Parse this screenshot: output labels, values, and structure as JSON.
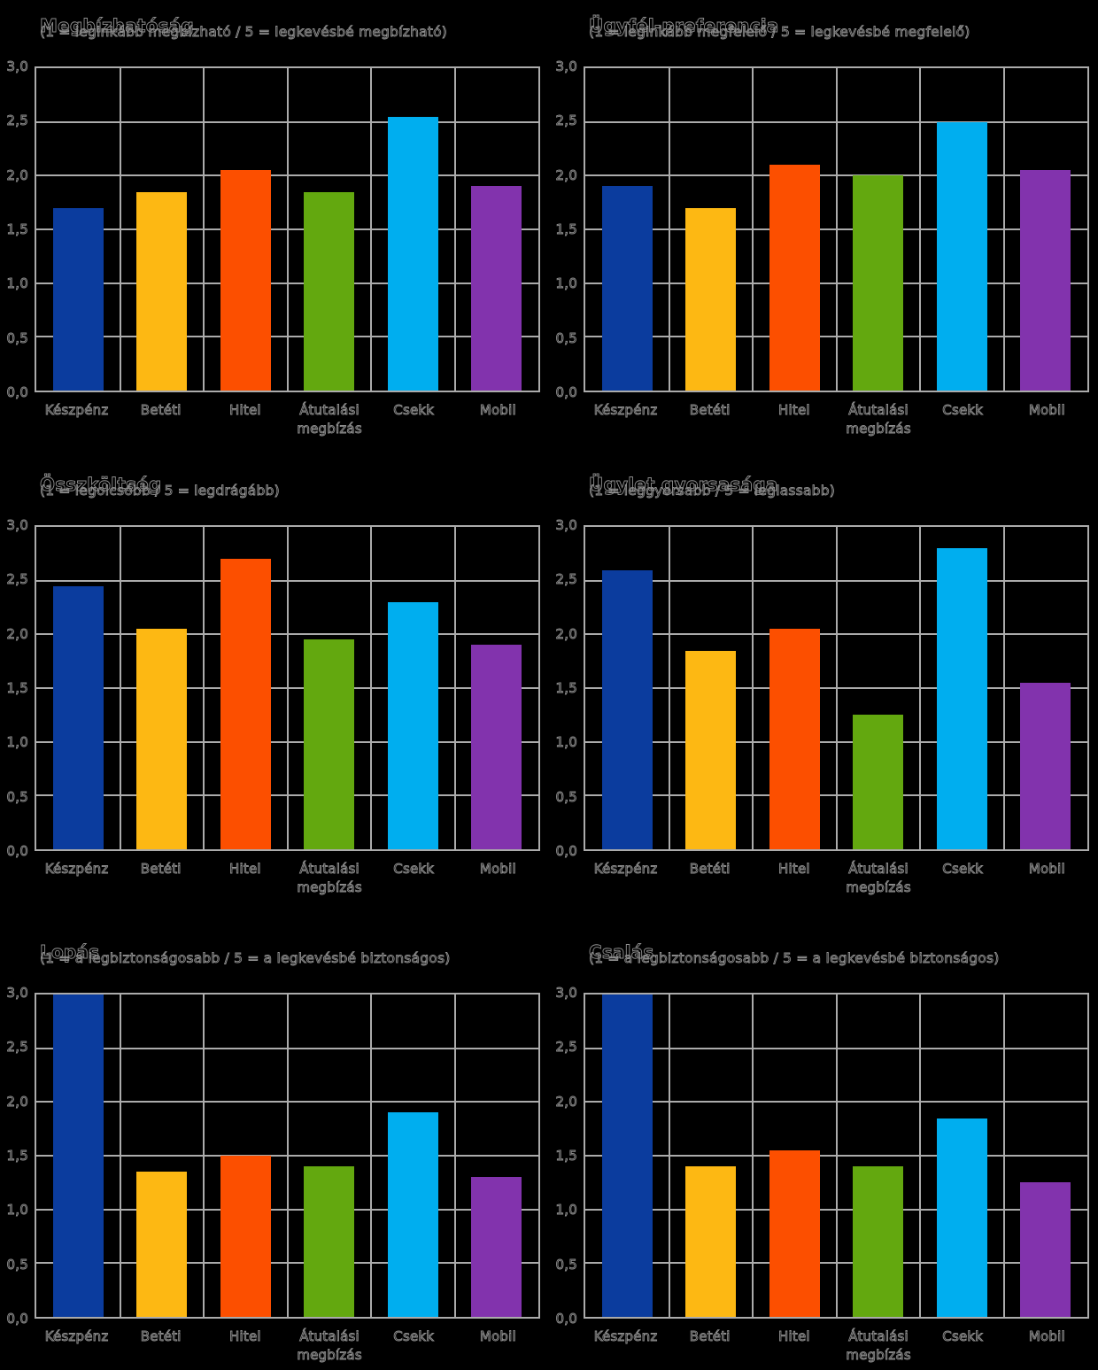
{
  "page": {
    "background": "#000000",
    "language": "hu",
    "description_note": "6 bar charts ranking payment methods on a 0-3 scale"
  },
  "colors": {
    "bars": [
      "#0b3c9e",
      "#fdb813",
      "#fc4f00",
      "#63a80f",
      "#00aeef",
      "#8233ad"
    ],
    "grid": "#ababab",
    "text": "#8f8f8f",
    "background": "#000000"
  },
  "bar_names": [
    "bar-keszpenz",
    "bar-beteti",
    "bar-hitel",
    "bar-atutalasi-megbizas",
    "bar-csekk",
    "bar-mobil"
  ],
  "yticks": [
    "3,0",
    "2,5",
    "2,0",
    "1,5",
    "1,0",
    "0,5",
    "0,0"
  ],
  "chart_data": [
    {
      "type": "bar",
      "title": "Megbízhatóság",
      "subtitle": "(1 = leginkább megbízható / 5 = legkevésbé megbízható)",
      "categories": [
        "Készpénz",
        "Betéti",
        "Hitel",
        "Átutalási\nmegbízás",
        "Csekk",
        "Mobil"
      ],
      "values": [
        1.7,
        1.85,
        2.05,
        1.85,
        2.55,
        1.9
      ],
      "xlabel": "",
      "ylabel": "",
      "ylim": [
        0,
        3
      ],
      "ytick_step": 0.5,
      "grid": true,
      "legend": "none"
    },
    {
      "type": "bar",
      "title": "Ügyfél-preferencia",
      "subtitle": "(1 = leginkább megfelelő / 5 = legkevésbé megfelelő)",
      "categories": [
        "Készpénz",
        "Betéti",
        "Hitel",
        "Átutalási\nmegbízás",
        "Csekk",
        "Mobil"
      ],
      "values": [
        1.9,
        1.7,
        2.1,
        2.0,
        2.5,
        2.05
      ],
      "xlabel": "",
      "ylabel": "",
      "ylim": [
        0,
        3
      ],
      "ytick_step": 0.5,
      "grid": true,
      "legend": "none"
    },
    {
      "type": "bar",
      "title": "Összköltség",
      "subtitle": "(1 = legolcsóbb / 5 = legdrágább)",
      "categories": [
        "Készpénz",
        "Betéti",
        "Hitel",
        "Átutalási\nmegbízás",
        "Csekk",
        "Mobil"
      ],
      "values": [
        2.45,
        2.05,
        2.7,
        1.95,
        2.3,
        1.9
      ],
      "xlabel": "",
      "ylabel": "",
      "ylim": [
        0,
        3
      ],
      "ytick_step": 0.5,
      "grid": true,
      "legend": "none"
    },
    {
      "type": "bar",
      "title": "Ügylet gyorsasága",
      "subtitle": "(1 = leggyorsabb / 5 = leglassabb)",
      "categories": [
        "Készpénz",
        "Betéti",
        "Hitel",
        "Átutalási\nmegbízás",
        "Csekk",
        "Mobil"
      ],
      "values": [
        2.6,
        1.85,
        2.05,
        1.25,
        2.8,
        1.55
      ],
      "xlabel": "",
      "ylabel": "",
      "ylim": [
        0,
        3
      ],
      "ytick_step": 0.5,
      "grid": true,
      "legend": "none"
    },
    {
      "type": "bar",
      "title": "Lopás",
      "subtitle": "(1 = a legbiztonságosabb / 5 = a legkevésbé biztonságos)",
      "categories": [
        "Készpénz",
        "Betéti",
        "Hitel",
        "Átutalási\nmegbízás",
        "Csekk",
        "Mobil"
      ],
      "values": [
        3.0,
        1.35,
        1.5,
        1.4,
        1.9,
        1.3
      ],
      "xlabel": "",
      "ylabel": "",
      "ylim": [
        0,
        3
      ],
      "ytick_step": 0.5,
      "grid": true,
      "legend": "none"
    },
    {
      "type": "bar",
      "title": "Csalás",
      "subtitle": "(1 = a legbiztonságosabb / 5 = a legkevésbé biztonságos)",
      "categories": [
        "Készpénz",
        "Betéti",
        "Hitel",
        "Átutalási\nmegbízás",
        "Csekk",
        "Mobil"
      ],
      "values": [
        3.0,
        1.4,
        1.55,
        1.4,
        1.85,
        1.25
      ],
      "xlabel": "",
      "ylabel": "",
      "ylim": [
        0,
        3
      ],
      "ytick_step": 0.5,
      "grid": true,
      "legend": "none"
    }
  ]
}
